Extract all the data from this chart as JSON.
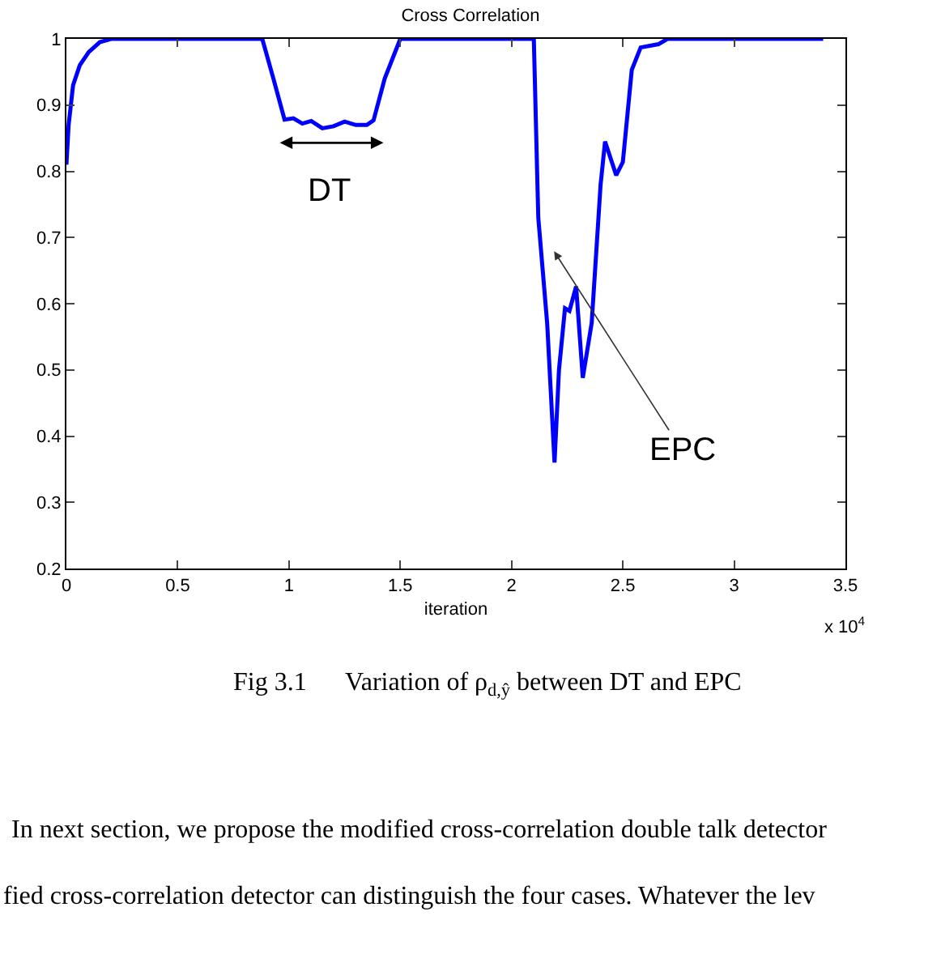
{
  "chart_data": {
    "type": "line",
    "title": "Cross Correlation",
    "xlabel": "iteration",
    "x": [
      0,
      0.01,
      0.03,
      0.06,
      0.1,
      0.15,
      0.2,
      0.88,
      0.93,
      0.98,
      1.02,
      1.06,
      1.1,
      1.15,
      1.2,
      1.25,
      1.3,
      1.35,
      1.38,
      1.43,
      1.5,
      2.1,
      2.12,
      2.16,
      2.193,
      2.213,
      2.24,
      2.26,
      2.29,
      2.32,
      2.36,
      2.4,
      2.42,
      2.47,
      2.5,
      2.54,
      2.58,
      2.66,
      2.7,
      3.4
    ],
    "series": [
      {
        "color": "#0000ff",
        "values": [
          0.81,
          0.87,
          0.93,
          0.96,
          0.98,
          0.995,
          1,
          1,
          0.94,
          0.878,
          0.88,
          0.872,
          0.876,
          0.865,
          0.868,
          0.875,
          0.87,
          0.87,
          0.877,
          0.94,
          1,
          1,
          0.73,
          0.57,
          0.36,
          0.5,
          0.593,
          0.589,
          0.626,
          0.488,
          0.571,
          0.78,
          0.845,
          0.794,
          0.814,
          0.953,
          0.987,
          0.992,
          1,
          1
        ]
      }
    ],
    "xlim": [
      0,
      3.5
    ],
    "ylim": [
      0.2,
      1
    ],
    "xticks": [
      0,
      0.5,
      1,
      1.5,
      2,
      2.5,
      3,
      3.5
    ],
    "yticks": [
      0.2,
      0.3,
      0.4,
      0.5,
      0.6,
      0.7,
      0.8,
      0.9,
      1
    ],
    "grid": false,
    "marker": "none",
    "line_style": "solid",
    "annotations": [
      "DT",
      "EPC",
      "x 10$^{4}$",
      "Fig 3.1      Variation of ρ$_{d,ŷ}$ between DT and EPC",
      "In next section, we propose the modified cross-correlation double talk detector",
      "fied cross-correlation detector can distinguish the four cases. Whatever the lev"
    ]
  }
}
